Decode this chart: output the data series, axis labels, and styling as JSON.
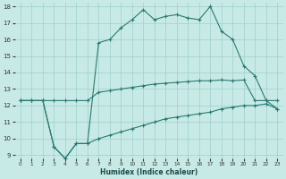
{
  "xlabel": "Humidex (Indice chaleur)",
  "bg_color": "#c8eae6",
  "grid_color": "#9ed0cc",
  "line_color": "#2a7a72",
  "xlim": [
    -0.5,
    23.5
  ],
  "ylim": [
    8.8,
    18.2
  ],
  "xticks": [
    0,
    1,
    2,
    3,
    4,
    5,
    6,
    7,
    8,
    9,
    10,
    11,
    12,
    13,
    14,
    15,
    16,
    17,
    18,
    19,
    20,
    21,
    22,
    23
  ],
  "yticks": [
    9,
    10,
    11,
    12,
    13,
    14,
    15,
    16,
    17,
    18
  ],
  "line1_x": [
    0,
    1,
    2,
    3,
    4,
    5,
    6,
    7,
    8,
    9,
    10,
    11,
    12,
    13,
    14,
    15,
    16,
    17,
    18,
    19,
    20,
    21,
    22,
    23
  ],
  "line1_y": [
    12.3,
    12.3,
    12.3,
    12.3,
    12.3,
    12.3,
    12.3,
    12.8,
    12.9,
    13.0,
    13.1,
    13.2,
    13.3,
    13.35,
    13.4,
    13.45,
    13.5,
    13.5,
    13.55,
    13.5,
    13.55,
    12.3,
    12.3,
    11.8
  ],
  "line2_x": [
    0,
    1,
    2,
    3,
    4,
    5,
    6,
    7,
    8,
    9,
    10,
    11,
    12,
    13,
    14,
    15,
    16,
    17,
    18,
    19,
    20,
    21,
    22,
    23
  ],
  "line2_y": [
    12.3,
    12.3,
    12.3,
    9.5,
    8.8,
    9.7,
    9.7,
    15.8,
    16.0,
    16.7,
    17.2,
    17.8,
    17.2,
    17.4,
    17.5,
    17.3,
    17.2,
    18.0,
    16.5,
    16.0,
    14.4,
    13.8,
    12.3,
    12.3
  ],
  "line3_x": [
    0,
    1,
    2,
    3,
    4,
    5,
    6,
    7,
    8,
    9,
    10,
    11,
    12,
    13,
    14,
    15,
    16,
    17,
    18,
    19,
    20,
    21,
    22,
    23
  ],
  "line3_y": [
    12.3,
    12.3,
    12.3,
    9.5,
    8.8,
    9.7,
    9.7,
    10.0,
    10.2,
    10.4,
    10.6,
    10.8,
    11.0,
    11.2,
    11.3,
    11.4,
    11.5,
    11.6,
    11.8,
    11.9,
    12.0,
    12.0,
    12.1,
    11.8
  ]
}
